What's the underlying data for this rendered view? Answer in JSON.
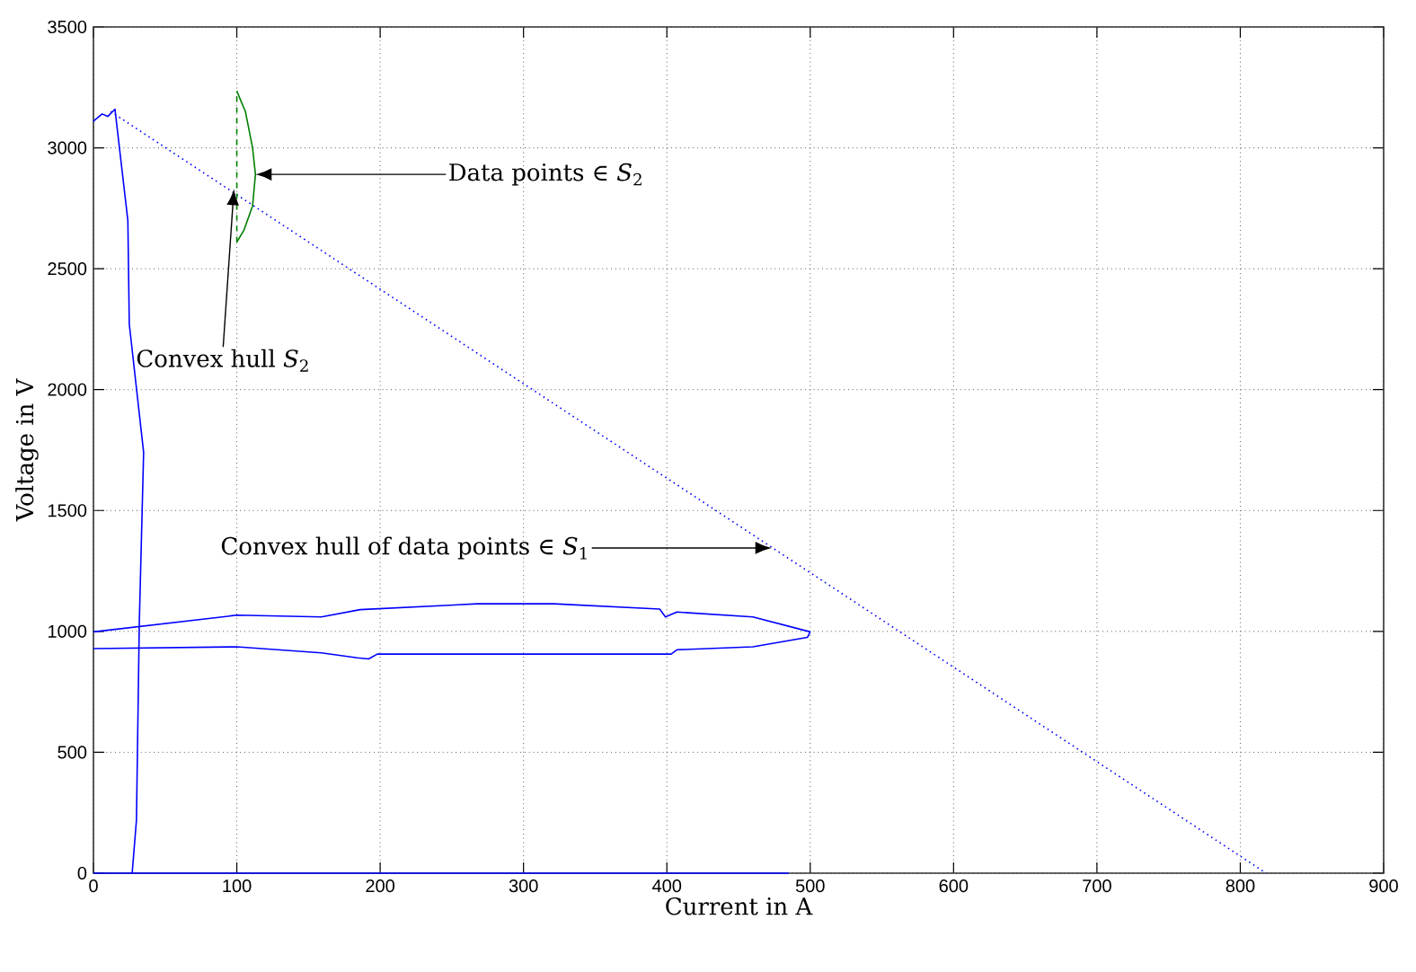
{
  "chart_data": {
    "type": "line",
    "xlabel": "Current in A",
    "ylabel": "Voltage in V",
    "xlim": [
      0,
      900
    ],
    "ylim": [
      0,
      3500
    ],
    "xticks": [
      0,
      100,
      200,
      300,
      400,
      500,
      600,
      700,
      800,
      900
    ],
    "yticks": [
      0,
      500,
      1000,
      1500,
      2000,
      2500,
      3000,
      3500
    ],
    "grid": true,
    "series": [
      {
        "color": "#0000ff",
        "x": [
          0,
          6,
          10,
          15,
          24,
          25,
          35,
          32,
          30,
          27
        ],
        "values": [
          3110,
          3140,
          3130,
          3160,
          2700,
          2270,
          1740,
          1040,
          220,
          0
        ]
      },
      {
        "color": "#0000ff",
        "line_style": "dotted",
        "x": [
          12,
          818
        ],
        "values": [
          3150,
          0
        ]
      },
      {
        "color": "#0000ff",
        "x": [
          0,
          100,
          159,
          184,
          192,
          198,
          403,
          407,
          460,
          498,
          500
        ],
        "values": [
          929,
          936,
          911,
          891,
          886,
          906,
          906,
          924,
          936,
          975,
          998
        ]
      },
      {
        "color": "#0000ff",
        "x": [
          0,
          100,
          159,
          186,
          268,
          321,
          395,
          399,
          407,
          460,
          500
        ],
        "values": [
          998,
          1067,
          1060,
          1090,
          1114,
          1114,
          1092,
          1060,
          1080,
          1060,
          998
        ]
      },
      {
        "color": "#008000",
        "x": [
          100,
          106,
          111,
          113,
          111,
          105,
          100
        ],
        "values": [
          3235,
          3150,
          3000,
          2890,
          2760,
          2660,
          2610
        ]
      },
      {
        "color": "#008000",
        "line_style": "dashed",
        "x": [
          100,
          100
        ],
        "values": [
          2610,
          3235
        ]
      },
      {
        "color": "#0000ff",
        "x": [
          0,
          485
        ],
        "values": [
          0,
          0
        ]
      }
    ],
    "annotations": [
      {
        "text": "Data points ∈ *S*$_{2}$",
        "x": 113,
        "y": 2890
      },
      {
        "text": "Convex hull *S*$_{2}$",
        "x": 98,
        "y": 2830
      },
      {
        "text": "Convex hull of data points ∈ *S*$_{1}$",
        "x": 473,
        "y": 1345
      }
    ]
  }
}
